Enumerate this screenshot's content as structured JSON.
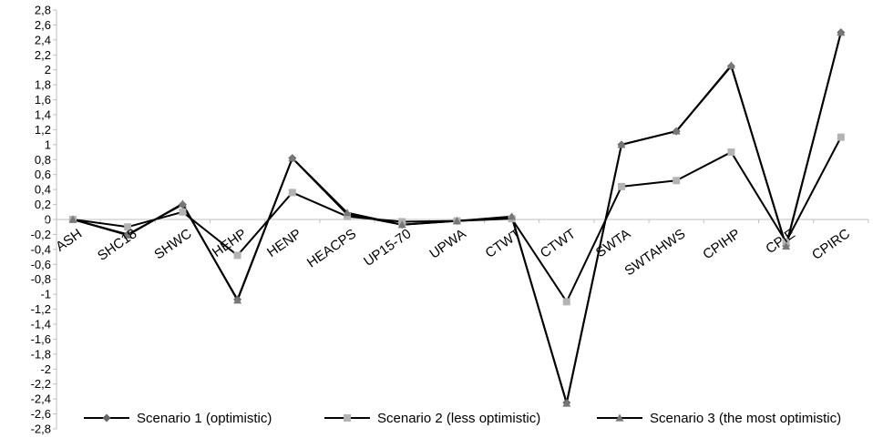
{
  "chart_data": {
    "type": "line",
    "title": "",
    "xlabel": "",
    "ylabel": "",
    "categories": [
      "ASH",
      "SHC18",
      "SHWC",
      "HEHP",
      "HENP",
      "HEACPS",
      "UP15-70",
      "UPWA",
      "CTWT",
      "CTWT",
      "SWTA",
      "SWTAHWS",
      "CPIHP",
      "CPIE",
      "CPIRC"
    ],
    "ylim": [
      -2.8,
      2.8
    ],
    "ytick_step": 0.2,
    "yticks": [
      "-2,8",
      "-2,6",
      "-2,4",
      "-2,2",
      "-2",
      "-1,8",
      "-1,6",
      "-1,4",
      "-1,2",
      "-1",
      "-0,8",
      "-0,6",
      "-0,4",
      "-0,2",
      "0",
      "0,2",
      "0,4",
      "0,6",
      "0,8",
      "1",
      "1,2",
      "1,4",
      "1,6",
      "1,8",
      "2",
      "2,2",
      "2,4",
      "2,6",
      "2,8"
    ],
    "grid": false,
    "legend_position": "bottom",
    "series": [
      {
        "name": "Scenario 1 (optimistic)",
        "marker": "diamond",
        "color": "#666666",
        "values": [
          0,
          -0.2,
          0.2,
          -1.07,
          0.82,
          0.07,
          -0.07,
          -0.02,
          0.03,
          -2.45,
          1.0,
          1.18,
          2.05,
          -0.35,
          2.5
        ]
      },
      {
        "name": "Scenario 2 (less optimistic)",
        "marker": "square",
        "color": "#b3b3b3",
        "values": [
          0,
          -0.1,
          0.1,
          -0.48,
          0.36,
          0.04,
          -0.03,
          -0.02,
          0.01,
          -1.1,
          0.44,
          0.52,
          0.9,
          -0.3,
          1.1
        ]
      },
      {
        "name": "Scenario 3 (the most optimistic)",
        "marker": "triangle",
        "color": "#777777",
        "values": [
          0,
          -0.21,
          0.21,
          -1.08,
          0.82,
          0.09,
          -0.07,
          -0.02,
          0.04,
          -2.46,
          1.0,
          1.18,
          2.06,
          -0.36,
          2.5
        ]
      }
    ]
  }
}
